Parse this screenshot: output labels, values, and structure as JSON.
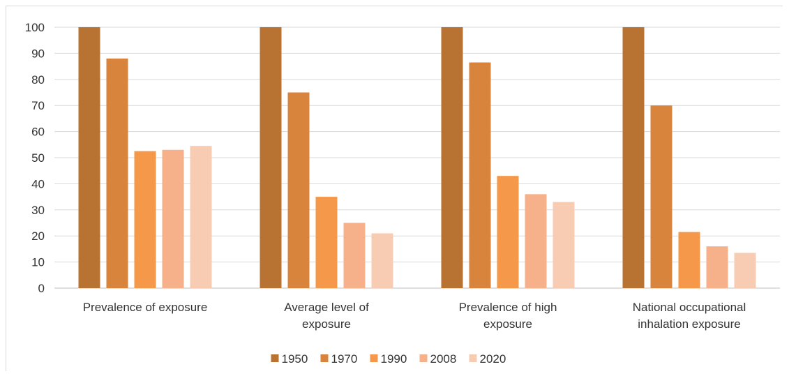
{
  "chart_data": {
    "type": "bar",
    "title": "",
    "xlabel": "",
    "ylabel": "",
    "ylim": [
      0,
      100
    ],
    "yticks": [
      0,
      10,
      20,
      30,
      40,
      50,
      60,
      70,
      80,
      90,
      100
    ],
    "grid": true,
    "legend_position": "bottom",
    "categories": [
      [
        "Prevalence of exposure"
      ],
      [
        "Average level of",
        "exposure"
      ],
      [
        "Prevalence of high",
        "exposure"
      ],
      [
        "National occupational",
        "inhalation exposure"
      ]
    ],
    "series": [
      {
        "name": "1950",
        "color": "#b87333",
        "values": [
          100,
          100,
          100,
          100
        ]
      },
      {
        "name": "1970",
        "color": "#d9843d",
        "values": [
          88,
          75,
          86.5,
          70
        ]
      },
      {
        "name": "1990",
        "color": "#f5984a",
        "values": [
          52.5,
          35,
          43,
          21.5
        ]
      },
      {
        "name": "2008",
        "color": "#f6b08a",
        "values": [
          53,
          25,
          36,
          16
        ]
      },
      {
        "name": "2020",
        "color": "#f8cbb3",
        "values": [
          54.5,
          21,
          33,
          13.5
        ]
      }
    ]
  }
}
